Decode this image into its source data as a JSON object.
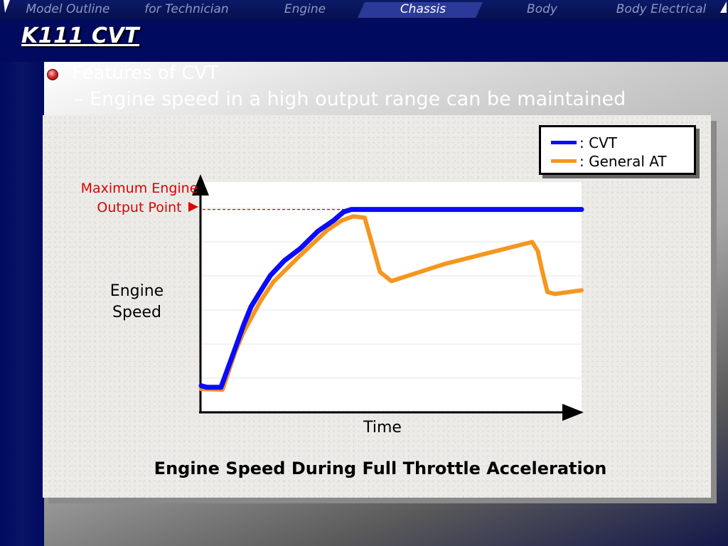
{
  "nav": {
    "tabs": [
      {
        "label": "Model Outline",
        "active": false
      },
      {
        "label": "for Technician",
        "active": false
      },
      {
        "label": "Engine",
        "active": false
      },
      {
        "label": "Chassis",
        "active": true
      },
      {
        "label": "Body",
        "active": false
      },
      {
        "label": "Body Electrical",
        "active": false
      }
    ],
    "highlight_color": "#2b3a99"
  },
  "slide": {
    "title": "K111 CVT",
    "bullet": "Features of CVT",
    "sub_bullet": "– Engine speed in a high output range can be maintained"
  },
  "chart_data": {
    "type": "line",
    "title": "Engine Speed During Full Throttle Acceleration",
    "xlabel": "Time",
    "ylabel": "Engine Speed",
    "annotation": "Maximum Engine Output Point",
    "x_ticks_shown": false,
    "y_ticks_shown": false,
    "xlim": [
      0,
      100
    ],
    "ylim": [
      0,
      100
    ],
    "max_output_level": 88,
    "grid": "horizontal",
    "legend_placement": "top-right",
    "series": [
      {
        "name": "CVT",
        "color": "#0a0aff",
        "x": [
          0,
          1.5,
          5.2,
          8.9,
          11.2,
          13.1,
          15.6,
          18.2,
          21.9,
          26.1,
          30.7,
          34.8,
          37.4,
          39.5,
          100
        ],
        "y": [
          11,
          10.3,
          10.3,
          27.1,
          37.7,
          45.5,
          52.3,
          59.2,
          65.7,
          71.0,
          78.5,
          83.2,
          86.9,
          88,
          88
        ]
      },
      {
        "name": "General AT",
        "color": "#f5961e",
        "x": [
          0,
          5.6,
          9.0,
          11.2,
          15.6,
          19.0,
          26.0,
          33.0,
          37.0,
          40.0,
          43.0,
          47.0,
          50.0,
          64.0,
          87.0,
          88.5,
          89.5,
          91.0,
          93.0,
          100
        ],
        "y": [
          9.6,
          9.3,
          25.9,
          34.6,
          48.0,
          56.4,
          67.9,
          78.8,
          83.2,
          85.0,
          84.4,
          60.7,
          56.7,
          64.2,
          73.8,
          69.8,
          62.3,
          52.0,
          51.1,
          52.7
        ]
      }
    ]
  }
}
